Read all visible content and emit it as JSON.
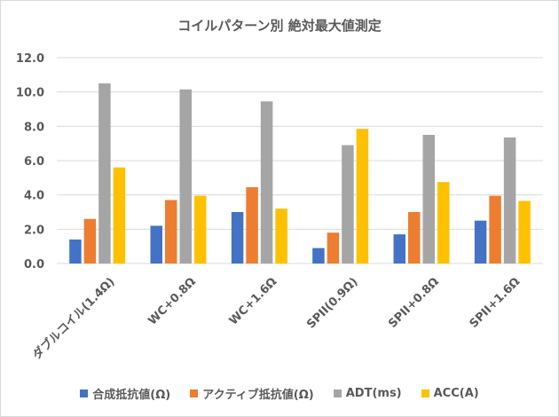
{
  "chart_data": {
    "type": "bar",
    "title": "コイルパターン別 絶対最大値測定",
    "categories": [
      "ダブルコイル(1.4Ω)",
      "WC+0.8Ω",
      "WC+1.6Ω",
      "SPII(0.9Ω)",
      "SPII+0.8Ω",
      "SPII+1.6Ω"
    ],
    "series": [
      {
        "name": "合成抵抗値(Ω)",
        "color": "#4472C4",
        "values": [
          1.4,
          2.2,
          3.0,
          0.9,
          1.7,
          2.5
        ]
      },
      {
        "name": "アクティブ抵抗値(Ω)",
        "color": "#ED7D31",
        "values": [
          2.6,
          3.7,
          4.45,
          1.8,
          3.0,
          3.95
        ]
      },
      {
        "name": "ADT(ms)",
        "color": "#A5A5A5",
        "values": [
          10.5,
          10.15,
          9.45,
          6.9,
          7.5,
          7.35
        ]
      },
      {
        "name": "ACC(A)",
        "color": "#FFC000",
        "values": [
          5.6,
          3.95,
          3.2,
          7.85,
          4.75,
          3.65
        ]
      }
    ],
    "ylim": [
      0,
      12
    ],
    "yticks": [
      "0.0",
      "2.0",
      "4.0",
      "6.0",
      "8.0",
      "10.0",
      "12.0"
    ],
    "grid": true,
    "legend_position": "bottom"
  }
}
